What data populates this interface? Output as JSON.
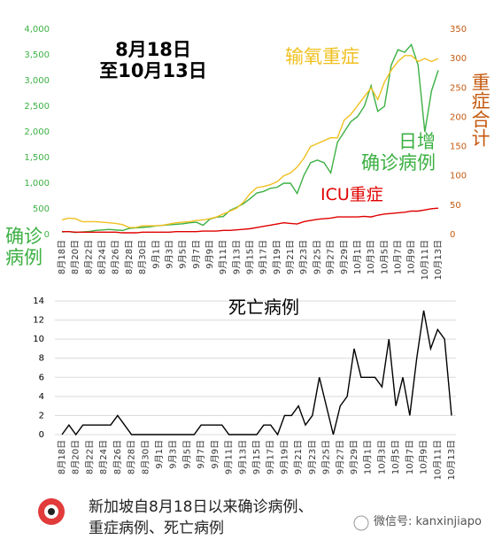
{
  "chart_data": [
    {
      "type": "line",
      "annotations": [
        "8月18日",
        "至10月13日"
      ],
      "ylabel": "确诊病例",
      "y2label": "重症合计",
      "categories": [
        "8月18日",
        null,
        "8月20日",
        null,
        "8月22日",
        null,
        "8月24日",
        null,
        "8月26日",
        null,
        "8月28日",
        null,
        "8月30日",
        null,
        "9月1日",
        null,
        "9月3日",
        null,
        "9月5日",
        null,
        "9月7日",
        null,
        "9月9日",
        null,
        "9月11日",
        null,
        "9月13日",
        null,
        "9月15日",
        null,
        "9月17日",
        null,
        "9月19日",
        null,
        "9月21日",
        null,
        "9月23日",
        null,
        "9月25日",
        null,
        "9月27日",
        null,
        "9月29日",
        null,
        "10月1日",
        null,
        "10月3日",
        null,
        "10月5日",
        null,
        "10月7日",
        null,
        "10月9日",
        null,
        "10月11日",
        null,
        "10月13日"
      ],
      "ylim": [
        0,
        4000
      ],
      "yticks": [
        0,
        500,
        {
          "value": 1000,
          "label": "1,000"
        },
        {
          "value": 1500,
          "label": "1,500"
        },
        {
          "value": 2000,
          "label": "2,000"
        },
        {
          "value": 2500,
          "label": "2,500"
        },
        {
          "value": 3000,
          "label": "3,000"
        },
        {
          "value": 3500,
          "label": "3,500"
        },
        {
          "value": 4000,
          "label": "4,000"
        }
      ],
      "y2lim": [
        0,
        350
      ],
      "y2ticks": [
        0,
        50,
        100,
        150,
        200,
        250,
        300,
        350
      ],
      "grid": false,
      "series": [
        {
          "name": "日增确诊病例",
          "color": "#3cb043",
          "axis": "y",
          "values": [
            50,
            60,
            40,
            50,
            60,
            80,
            90,
            100,
            90,
            80,
            120,
            130,
            140,
            150,
            170,
            180,
            190,
            200,
            210,
            230,
            240,
            180,
            300,
            340,
            350,
            470,
            530,
            600,
            700,
            810,
            840,
            900,
            920,
            1000,
            1000,
            800,
            1150,
            1400,
            1450,
            1400,
            1200,
            1800,
            2000,
            2200,
            2300,
            2500,
            2900,
            2400,
            2500,
            3300,
            3600,
            3550,
            3700,
            3300,
            2000,
            2800,
            3200
          ]
        },
        {
          "name": "输氧重症",
          "color": "#f0c020",
          "axis": "y2",
          "values": [
            25,
            28,
            27,
            22,
            22,
            22,
            21,
            20,
            19,
            17,
            12,
            12,
            15,
            15,
            15,
            16,
            18,
            20,
            21,
            22,
            24,
            25,
            27,
            30,
            35,
            40,
            45,
            55,
            70,
            80,
            82,
            85,
            90,
            100,
            105,
            115,
            130,
            150,
            155,
            160,
            165,
            165,
            195,
            205,
            220,
            235,
            250,
            230,
            260,
            280,
            295,
            305,
            305,
            295,
            300,
            295,
            300
          ]
        },
        {
          "name": "ICU重症",
          "color": "#e00000",
          "axis": "y2",
          "values": [
            5,
            5,
            4,
            4,
            4,
            4,
            4,
            4,
            4,
            3,
            3,
            3,
            4,
            4,
            4,
            4,
            4,
            5,
            5,
            5,
            5,
            6,
            6,
            6,
            7,
            7,
            8,
            9,
            10,
            12,
            14,
            16,
            18,
            20,
            19,
            18,
            22,
            24,
            26,
            27,
            28,
            30,
            30,
            30,
            30,
            31,
            30,
            33,
            35,
            36,
            37,
            38,
            40,
            40,
            42,
            44,
            45
          ]
        }
      ]
    },
    {
      "type": "line",
      "title": "死亡病例",
      "categories": [
        "8月18日",
        null,
        "8月20日",
        null,
        "8月22日",
        null,
        "8月24日",
        null,
        "8月26日",
        null,
        "8月28日",
        null,
        "8月30日",
        null,
        "9月1日",
        null,
        "9月3日",
        null,
        "9月5日",
        null,
        "9月7日",
        null,
        "9月9日",
        null,
        "9月11日",
        null,
        "9月13日",
        null,
        "9月15日",
        null,
        "9月17日",
        null,
        "9月19日",
        null,
        "9月21日",
        null,
        "9月23日",
        null,
        "9月25日",
        null,
        "9月27日",
        null,
        "9月29日",
        null,
        "10月1日",
        null,
        "10月3日",
        null,
        "10月5日",
        null,
        "10月7日",
        null,
        "10月9日",
        null,
        "10月11日",
        null,
        "10月13日"
      ],
      "ylim": [
        0,
        14
      ],
      "yticks": [
        0,
        2,
        4,
        6,
        8,
        10,
        12,
        14
      ],
      "grid": true,
      "series": [
        {
          "name": "死亡病例",
          "color": "#000000",
          "values": [
            0,
            1,
            0,
            1,
            1,
            1,
            1,
            1,
            2,
            1,
            0,
            0,
            0,
            0,
            0,
            0,
            0,
            0,
            0,
            0,
            1,
            1,
            1,
            1,
            0,
            0,
            0,
            0,
            0,
            1,
            1,
            0,
            2,
            2,
            3,
            1,
            2,
            6,
            3,
            0,
            3,
            4,
            9,
            6,
            6,
            6,
            5,
            10,
            3,
            6,
            2,
            8,
            13,
            9,
            11,
            10,
            2
          ]
        }
      ]
    }
  ],
  "caption": "新加坡自8月18日以来确诊病例、重症病例、死亡病例",
  "watermark": "微信号: kanxinjiapo"
}
